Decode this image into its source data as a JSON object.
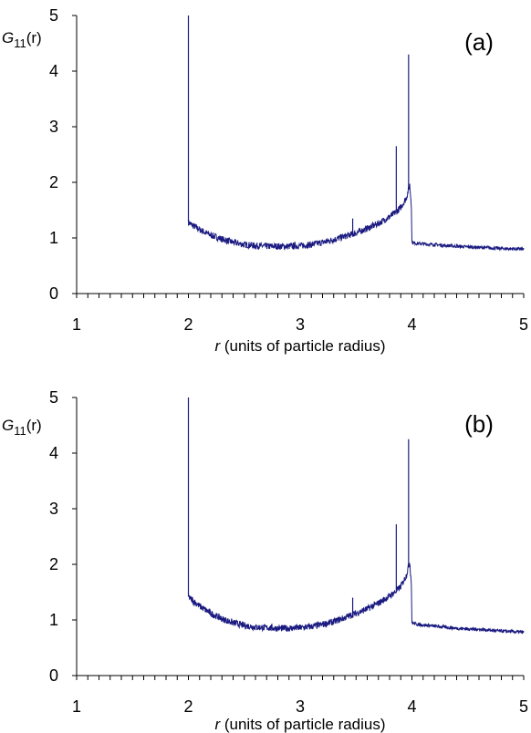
{
  "chart_data": [
    {
      "type": "line",
      "panel_label": "(a)",
      "ylabel_main": "G",
      "ylabel_sub": "11",
      "ylabel_arg": "(r)",
      "xlabel_var": "r",
      "xlabel_rest": " (units of particle radius)",
      "xlim": [
        1,
        5
      ],
      "ylim": [
        0,
        5
      ],
      "x_ticks": [
        "1",
        "2",
        "3",
        "4",
        "5"
      ],
      "y_ticks": [
        "0",
        "1",
        "2",
        "3",
        "4",
        "5"
      ],
      "grid": false,
      "legend": "none",
      "color": "#1a1a80",
      "series": [
        {
          "x": [
            2.0,
            2.02,
            2.1,
            2.2,
            2.3,
            2.4,
            2.5,
            2.6,
            2.7,
            2.8,
            2.9,
            3.0,
            3.1,
            3.2,
            3.3,
            3.4,
            3.47,
            3.5,
            3.6,
            3.7,
            3.8,
            3.86,
            3.9,
            3.95,
            3.98,
            3.995,
            4.0,
            4.05,
            4.2,
            4.4,
            4.6,
            4.8,
            5.0
          ],
          "y": [
            1.28,
            1.25,
            1.15,
            1.05,
            0.98,
            0.92,
            0.88,
            0.86,
            0.85,
            0.85,
            0.85,
            0.86,
            0.88,
            0.92,
            0.97,
            1.03,
            1.07,
            1.09,
            1.17,
            1.26,
            1.38,
            1.47,
            1.55,
            1.72,
            1.95,
            1.6,
            0.92,
            0.9,
            0.88,
            0.85,
            0.83,
            0.81,
            0.8
          ]
        }
      ],
      "spikes": [
        {
          "x": 2.0,
          "y": 5.0
        },
        {
          "x": 3.47,
          "y": 1.35
        },
        {
          "x": 3.86,
          "y": 2.65
        },
        {
          "x": 3.97,
          "y": 4.3
        }
      ]
    },
    {
      "type": "line",
      "panel_label": "(b)",
      "ylabel_main": "G",
      "ylabel_sub": "11",
      "ylabel_arg": "(r)",
      "xlabel_var": "r",
      "xlabel_rest": " (units of particle radius)",
      "xlim": [
        1,
        5
      ],
      "ylim": [
        0,
        5
      ],
      "x_ticks": [
        "1",
        "2",
        "3",
        "4",
        "5"
      ],
      "y_ticks": [
        "0",
        "1",
        "2",
        "3",
        "4",
        "5"
      ],
      "grid": false,
      "legend": "none",
      "color": "#1a1a80",
      "series": [
        {
          "x": [
            2.0,
            2.02,
            2.1,
            2.2,
            2.3,
            2.4,
            2.5,
            2.6,
            2.7,
            2.8,
            2.9,
            3.0,
            3.1,
            3.2,
            3.3,
            3.4,
            3.47,
            3.5,
            3.6,
            3.7,
            3.8,
            3.86,
            3.9,
            3.95,
            3.98,
            3.995,
            4.0,
            4.05,
            4.2,
            4.4,
            4.6,
            4.8,
            5.0
          ],
          "y": [
            1.42,
            1.38,
            1.25,
            1.12,
            1.02,
            0.95,
            0.9,
            0.87,
            0.86,
            0.85,
            0.85,
            0.86,
            0.88,
            0.92,
            0.97,
            1.04,
            1.1,
            1.12,
            1.2,
            1.3,
            1.43,
            1.52,
            1.6,
            1.8,
            2.05,
            1.65,
            0.95,
            0.92,
            0.89,
            0.85,
            0.83,
            0.8,
            0.78
          ]
        }
      ],
      "spikes": [
        {
          "x": 2.0,
          "y": 5.0
        },
        {
          "x": 3.47,
          "y": 1.4
        },
        {
          "x": 3.86,
          "y": 2.72
        },
        {
          "x": 3.97,
          "y": 4.25
        }
      ]
    }
  ]
}
